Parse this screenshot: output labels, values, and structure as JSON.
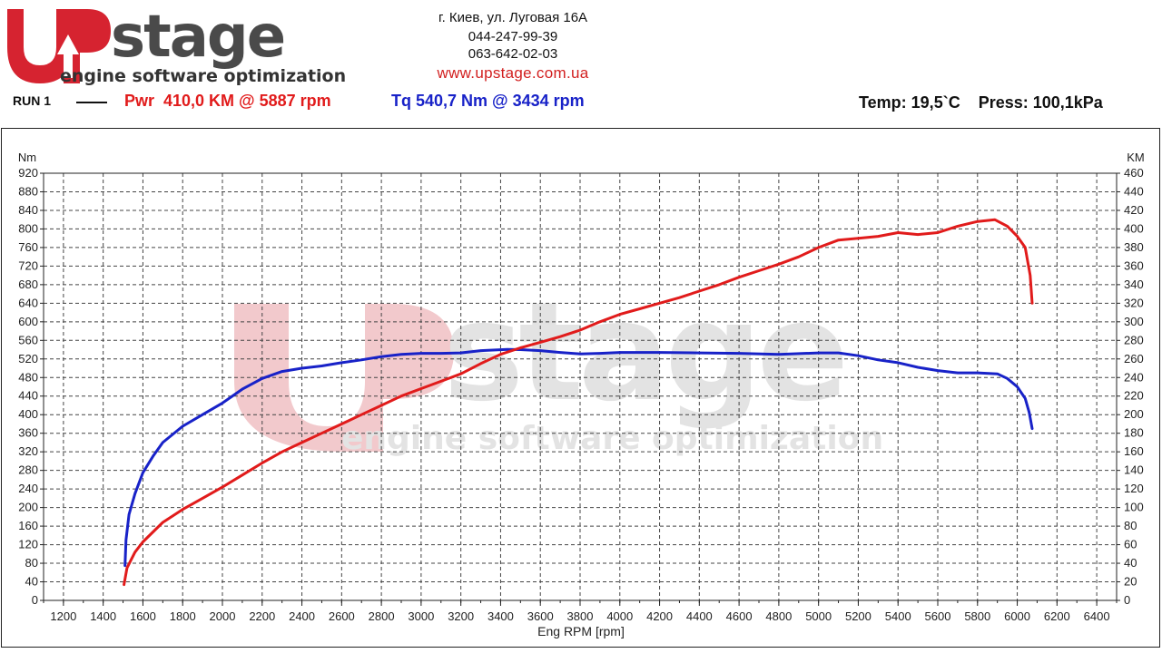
{
  "header": {
    "logo_text": "UPstage",
    "logo_tagline": "engine software optimization",
    "address": "г. Киев, ул. Луговая 16А",
    "phone1": "044-247-99-39",
    "phone2": "063-642-02-03",
    "website": "www.upstage.com.ua"
  },
  "summary": {
    "run_label": "RUN 1",
    "power": "Pwr  410,0 KM @ 5887 rpm",
    "torque": "Tq 540,7 Nm @ 3434 rpm",
    "conditions": "Temp: 19,5`C    Press: 100,1kPa"
  },
  "colors": {
    "power": "#e11b1b",
    "torque": "#1822c8",
    "grid": "#444444",
    "watermark_red": "#f2c9cc",
    "watermark_gray": "#e3e3e3"
  },
  "chart_data": {
    "type": "line",
    "xlabel": "Eng RPM [rpm]",
    "ylabel_left": "Nm",
    "ylabel_right": "KM",
    "xlim": [
      1100,
      6500
    ],
    "ylim_left": [
      0,
      920
    ],
    "ylim_right": [
      0,
      460
    ],
    "x_ticks": [
      1200,
      1400,
      1600,
      1800,
      2000,
      2200,
      2400,
      2600,
      2800,
      3000,
      3200,
      3400,
      3600,
      3800,
      4000,
      4200,
      4400,
      4600,
      4800,
      5000,
      5200,
      5400,
      5600,
      5800,
      6000,
      6200,
      6400
    ],
    "y_ticks_left": [
      0,
      40,
      80,
      120,
      160,
      200,
      240,
      280,
      320,
      360,
      400,
      440,
      480,
      520,
      560,
      600,
      640,
      680,
      720,
      760,
      800,
      840,
      880,
      920
    ],
    "y_ticks_right": [
      0,
      20,
      40,
      60,
      80,
      100,
      120,
      140,
      160,
      180,
      200,
      220,
      240,
      260,
      280,
      300,
      320,
      340,
      360,
      380,
      400,
      420,
      440,
      460
    ],
    "grid": true,
    "series": [
      {
        "name": "Tq",
        "axis": "left",
        "color": "#1822c8",
        "points": [
          [
            1510,
            75
          ],
          [
            1515,
            130
          ],
          [
            1530,
            185
          ],
          [
            1560,
            230
          ],
          [
            1600,
            275
          ],
          [
            1650,
            310
          ],
          [
            1700,
            340
          ],
          [
            1800,
            375
          ],
          [
            1900,
            400
          ],
          [
            2000,
            425
          ],
          [
            2100,
            455
          ],
          [
            2200,
            478
          ],
          [
            2300,
            493
          ],
          [
            2400,
            500
          ],
          [
            2500,
            505
          ],
          [
            2600,
            512
          ],
          [
            2700,
            518
          ],
          [
            2800,
            525
          ],
          [
            2900,
            530
          ],
          [
            3000,
            532
          ],
          [
            3100,
            532
          ],
          [
            3200,
            533
          ],
          [
            3300,
            538
          ],
          [
            3434,
            540.7
          ],
          [
            3500,
            540
          ],
          [
            3600,
            538
          ],
          [
            3700,
            534
          ],
          [
            3800,
            531
          ],
          [
            3900,
            532
          ],
          [
            4000,
            534
          ],
          [
            4200,
            534
          ],
          [
            4400,
            533
          ],
          [
            4600,
            532
          ],
          [
            4800,
            530
          ],
          [
            5000,
            533
          ],
          [
            5100,
            533
          ],
          [
            5200,
            527
          ],
          [
            5300,
            518
          ],
          [
            5400,
            512
          ],
          [
            5500,
            502
          ],
          [
            5600,
            495
          ],
          [
            5700,
            490
          ],
          [
            5800,
            490
          ],
          [
            5900,
            488
          ],
          [
            5950,
            478
          ],
          [
            6000,
            460
          ],
          [
            6040,
            435
          ],
          [
            6060,
            405
          ],
          [
            6075,
            370
          ]
        ]
      },
      {
        "name": "Pwr",
        "axis": "right",
        "color": "#e11b1b",
        "points": [
          [
            1505,
            17
          ],
          [
            1520,
            35
          ],
          [
            1560,
            52
          ],
          [
            1600,
            63
          ],
          [
            1700,
            84
          ],
          [
            1800,
            98
          ],
          [
            1900,
            110
          ],
          [
            2000,
            122
          ],
          [
            2100,
            135
          ],
          [
            2200,
            148
          ],
          [
            2300,
            160
          ],
          [
            2400,
            170
          ],
          [
            2500,
            180
          ],
          [
            2600,
            190
          ],
          [
            2700,
            200
          ],
          [
            2800,
            210
          ],
          [
            2900,
            220
          ],
          [
            3000,
            228
          ],
          [
            3100,
            236
          ],
          [
            3200,
            244
          ],
          [
            3300,
            255
          ],
          [
            3400,
            265
          ],
          [
            3500,
            272
          ],
          [
            3600,
            278
          ],
          [
            3700,
            284
          ],
          [
            3800,
            291
          ],
          [
            3900,
            300
          ],
          [
            4000,
            308
          ],
          [
            4100,
            314
          ],
          [
            4200,
            320
          ],
          [
            4300,
            326
          ],
          [
            4400,
            333
          ],
          [
            4500,
            340
          ],
          [
            4600,
            348
          ],
          [
            4700,
            355
          ],
          [
            4800,
            362
          ],
          [
            4900,
            370
          ],
          [
            5000,
            380
          ],
          [
            5100,
            388
          ],
          [
            5200,
            390
          ],
          [
            5300,
            392
          ],
          [
            5400,
            396
          ],
          [
            5500,
            394
          ],
          [
            5600,
            396
          ],
          [
            5700,
            403
          ],
          [
            5800,
            408
          ],
          [
            5887,
            410
          ],
          [
            5950,
            403
          ],
          [
            6000,
            392
          ],
          [
            6040,
            380
          ],
          [
            6065,
            350
          ],
          [
            6075,
            320
          ]
        ]
      }
    ]
  }
}
